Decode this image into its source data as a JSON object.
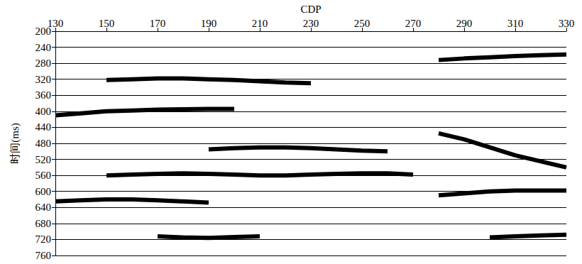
{
  "chart_data": {
    "type": "line",
    "x_label": "CDP",
    "y_label": "时间(ms)",
    "x": [
      130,
      140,
      150,
      160,
      170,
      180,
      190,
      200,
      210,
      220,
      230,
      240,
      250,
      260,
      270,
      280,
      290,
      300,
      310,
      320,
      330
    ],
    "series": [
      {
        "color": "#000000",
        "values": [
          null,
          null,
          null,
          null,
          null,
          null,
          null,
          null,
          null,
          null,
          null,
          null,
          null,
          null,
          null,
          272,
          268,
          265,
          262,
          260,
          258
        ]
      },
      {
        "color": "#000000",
        "values": [
          null,
          null,
          322,
          320,
          318,
          318,
          320,
          322,
          325,
          328,
          330,
          null,
          null,
          null,
          null,
          null,
          null,
          null,
          null,
          null,
          null
        ]
      },
      {
        "color": "#000000",
        "values": [
          410,
          405,
          400,
          398,
          396,
          395,
          394,
          394,
          null,
          null,
          null,
          null,
          null,
          null,
          null,
          null,
          null,
          null,
          null,
          null,
          null
        ]
      },
      {
        "color": "#000000",
        "values": [
          null,
          null,
          null,
          null,
          null,
          null,
          495,
          492,
          490,
          490,
          492,
          495,
          498,
          500,
          null,
          null,
          null,
          null,
          null,
          null,
          null
        ]
      },
      {
        "color": "#000000",
        "values": [
          null,
          null,
          null,
          null,
          null,
          null,
          null,
          null,
          null,
          null,
          null,
          null,
          null,
          null,
          null,
          455,
          470,
          490,
          510,
          525,
          540
        ]
      },
      {
        "color": "#000000",
        "values": [
          null,
          null,
          560,
          558,
          556,
          555,
          556,
          558,
          560,
          560,
          558,
          556,
          555,
          555,
          558,
          null,
          null,
          null,
          null,
          null,
          null
        ]
      },
      {
        "color": "#000000",
        "values": [
          625,
          622,
          620,
          620,
          622,
          625,
          628,
          null,
          null,
          null,
          null,
          null,
          null,
          null,
          null,
          null,
          null,
          null,
          null,
          null,
          null
        ]
      },
      {
        "color": "#000000",
        "values": [
          null,
          null,
          null,
          null,
          null,
          null,
          null,
          null,
          null,
          null,
          null,
          null,
          null,
          null,
          null,
          610,
          605,
          600,
          598,
          598,
          598
        ]
      },
      {
        "color": "#000000",
        "values": [
          null,
          null,
          null,
          null,
          712,
          715,
          716,
          714,
          712,
          null,
          null,
          null,
          null,
          null,
          null,
          null,
          null,
          null,
          null,
          null,
          null
        ]
      },
      {
        "color": "#000000",
        "values": [
          null,
          null,
          null,
          null,
          null,
          null,
          null,
          null,
          null,
          null,
          null,
          null,
          null,
          null,
          null,
          null,
          null,
          715,
          712,
          710,
          708
        ]
      }
    ],
    "xlim": [
      130,
      330
    ],
    "xticks": [
      130,
      150,
      170,
      190,
      210,
      230,
      250,
      270,
      290,
      310,
      330
    ],
    "ylim": [
      200,
      760
    ],
    "yticks": [
      200,
      240,
      280,
      320,
      360,
      400,
      440,
      480,
      520,
      560,
      600,
      640,
      680,
      720,
      760
    ],
    "grid": true
  }
}
